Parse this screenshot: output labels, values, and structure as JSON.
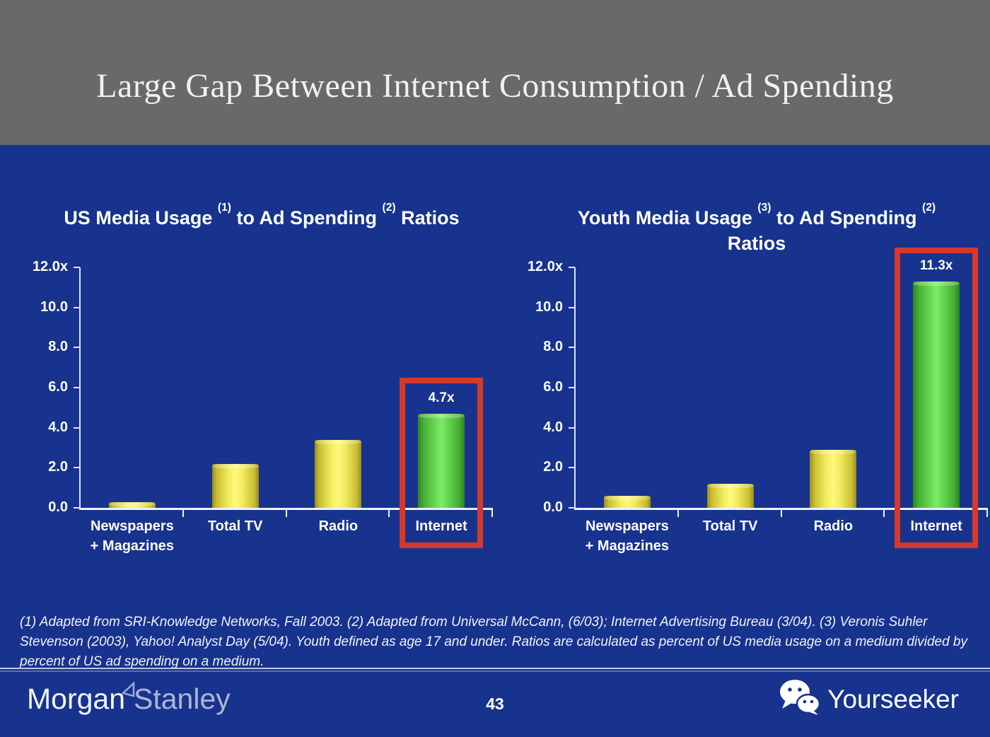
{
  "header": {
    "title": "Large Gap Between Internet Consumption / Ad Spending",
    "background_color": "#68696b"
  },
  "colors": {
    "slide_blue": "#17338e",
    "bar_yellow": "#f3ec5f",
    "bar_green": "#68da52",
    "highlight_red": "#d5392b",
    "text_white": "#ffffff"
  },
  "chart_data": [
    {
      "type": "bar",
      "title": "US Media Usage (1) to Ad Spending (2) Ratios",
      "title_lines": [
        "US Media Usage (1) to Ad Spending (2) Ratios"
      ],
      "categories": [
        "Newspapers + Magazines",
        "Total TV",
        "Radio",
        "Internet"
      ],
      "category_lines": [
        [
          "Newspapers",
          "+ Magazines"
        ],
        [
          "Total TV"
        ],
        [
          "Radio"
        ],
        [
          "Internet"
        ]
      ],
      "values": [
        0.3,
        2.2,
        3.4,
        4.7
      ],
      "bar_colors": [
        "yellow",
        "yellow",
        "yellow",
        "green"
      ],
      "y_ticks": [
        "12.0x",
        "10.0",
        "8.0",
        "6.0",
        "4.0",
        "2.0",
        "0.0"
      ],
      "ylim": [
        0,
        12
      ],
      "grid": false,
      "highlight_index": 3,
      "annotation": "4.7x"
    },
    {
      "type": "bar",
      "title": "Youth Media Usage (3) to Ad Spending (2) Ratios",
      "title_lines": [
        "Youth Media Usage (3) to Ad Spending (2)",
        "Ratios"
      ],
      "categories": [
        "Newspapers + Magazines",
        "Total TV",
        "Radio",
        "Internet"
      ],
      "category_lines": [
        [
          "Newspapers",
          "+ Magazines"
        ],
        [
          "Total TV"
        ],
        [
          "Radio"
        ],
        [
          "Internet"
        ]
      ],
      "values": [
        0.6,
        1.2,
        2.9,
        11.3
      ],
      "bar_colors": [
        "yellow",
        "yellow",
        "yellow",
        "green"
      ],
      "y_ticks": [
        "12.0x",
        "10.0",
        "8.0",
        "6.0",
        "4.0",
        "2.0",
        "0.0"
      ],
      "ylim": [
        0,
        12
      ],
      "grid": false,
      "highlight_index": 3,
      "annotation": "11.3x"
    }
  ],
  "footnote": "(1) Adapted from SRI-Knowledge Networks, Fall 2003.  (2) Adapted from Universal McCann, (6/03); Internet Advertising Bureau (3/04). (3) Veronis Suhler Stevenson (2003), Yahoo! Analyst Day (5/04).  Youth defined as age 17 and under.  Ratios are calculated as percent of US media usage on a medium divided by percent of US ad spending on a medium.",
  "footer": {
    "logo_morgan": "Morgan",
    "logo_stanley": "Stanley",
    "page_number": "43",
    "brand": "Yourseeker"
  }
}
